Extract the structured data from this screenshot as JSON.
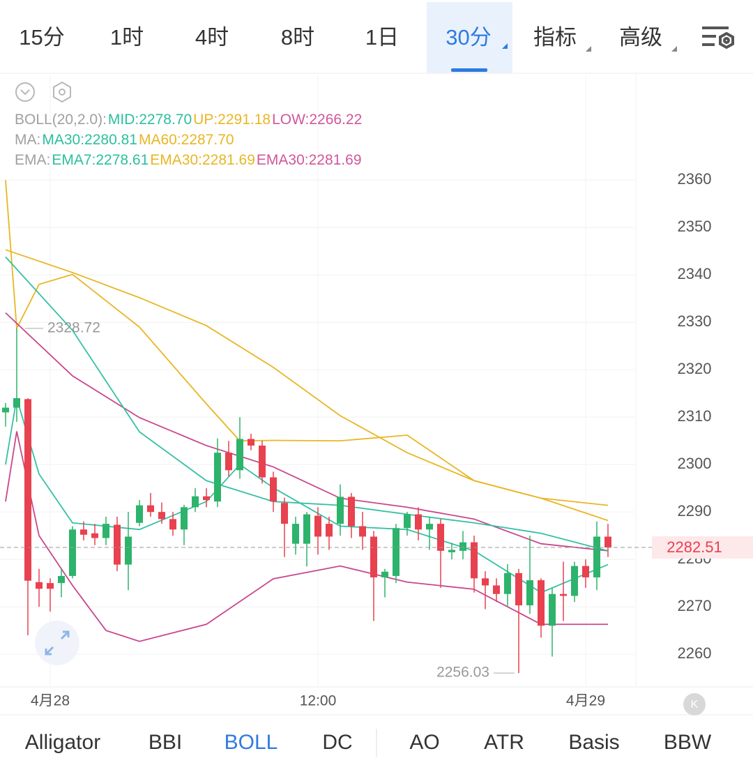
{
  "toolbar": {
    "timeframes": [
      "15分",
      "1时",
      "4时",
      "8时",
      "1日",
      "30分"
    ],
    "menus": [
      "指标",
      "高级"
    ]
  },
  "indicator_tabs": [
    "Alligator",
    "BBI",
    "BOLL",
    "DC",
    "AO",
    "ATR",
    "Basis",
    "BBW"
  ],
  "legend": [
    [
      "BOLL(20,2.0):",
      "MID:2278.70",
      "UP:2291.18",
      "LOW:2266.22"
    ],
    [
      "MA:",
      "MA30:2280.81",
      "MA60:2287.70"
    ],
    [
      "EMA:",
      "EMA7:2278.61",
      "EMA30:2281.69",
      "EMA30:2281.69"
    ]
  ],
  "chart_data": {
    "type": "candlestick",
    "categories": [
      null,
      null,
      null,
      null,
      "4月28",
      null,
      null,
      null,
      null,
      null,
      null,
      null,
      null,
      null,
      null,
      null,
      null,
      null,
      null,
      null,
      null,
      null,
      null,
      null,
      null,
      null,
      null,
      null,
      "12:00",
      null,
      null,
      null,
      null,
      null,
      null,
      null,
      null,
      null,
      null,
      null,
      null,
      null,
      null,
      null,
      null,
      null,
      null,
      null,
      null,
      null,
      null,
      null,
      "4月29",
      null,
      null
    ],
    "open": [
      2311,
      2312,
      2313.8,
      2275.2,
      2275,
      2275,
      2276.5,
      2286.3,
      2285.5,
      2284.5,
      2287.3,
      2278.9,
      2287.7,
      2291.4,
      2290,
      2288.5,
      2286.3,
      2291,
      2293.3,
      2292.2,
      2302.5,
      2298.8,
      2305.4,
      2304,
      2297.3,
      2291.9,
      2283.3,
      2283.3,
      2289.2,
      2287.5,
      2287.5,
      2293.2,
      2287,
      2284.8,
      2276.2,
      2276.5,
      2286.6,
      2289.5,
      2286.3,
      2287.5,
      2281.5,
      2281.8,
      2283.6,
      2276,
      2274.5,
      2272.7,
      2277.1,
      2270.3,
      2275.6,
      2266,
      2272.7,
      2272.3,
      2278.6,
      2276.2,
      2284.8
    ],
    "high": [
      2313,
      2328.72,
      2314,
      2278,
      2276,
      2278,
      2287,
      2288,
      2287.5,
      2289,
      2289,
      2290,
      2292.5,
      2294,
      2292,
      2290,
      2291.5,
      2295,
      2295,
      2305.5,
      2305,
      2310,
      2306.5,
      2305,
      2298.5,
      2293,
      2289,
      2290,
      2291,
      2289,
      2295.8,
      2294,
      2290,
      2286,
      2278,
      2287.5,
      2290,
      2291,
      2289,
      2288.5,
      2283.5,
      2286,
      2285,
      2277.5,
      2276,
      2279,
      2278,
      2285,
      2276,
      2274,
      2279.5,
      2279.5,
      2280,
      2288,
      2287.5
    ],
    "low": [
      2308,
      2309,
      2264,
      2270,
      2269,
      2272,
      2276,
      2284,
      2283,
      2283,
      2277.5,
      2273.5,
      2287,
      2289,
      2287.5,
      2285,
      2283,
      2290,
      2291,
      2291,
      2297.5,
      2297,
      2303,
      2296,
      2290,
      2280.5,
      2281,
      2278.5,
      2281,
      2282,
      2285,
      2284.5,
      2282,
      2267,
      2272,
      2275,
      2285,
      2284,
      2282,
      2274,
      2280,
      2280,
      2273,
      2269.5,
      2271,
      2270,
      2256.03,
      2268.5,
      2263.5,
      2259.5,
      2267,
      2271,
      2274,
      2273.5,
      2280.5
    ],
    "close": [
      2312,
      2314,
      2275.5,
      2273.8,
      2273.8,
      2276.5,
      2286.3,
      2285.2,
      2284.5,
      2287.5,
      2278.9,
      2284.8,
      2291.4,
      2290,
      2288.5,
      2286.3,
      2291,
      2293.3,
      2292.5,
      2302.5,
      2298.8,
      2305.4,
      2304,
      2297.3,
      2292.2,
      2287.5,
      2287.5,
      2289.5,
      2284.8,
      2284.8,
      2293.2,
      2287,
      2284.8,
      2276.2,
      2277.4,
      2286.6,
      2289.5,
      2286.3,
      2287.5,
      2281.8,
      2282,
      2283.6,
      2276,
      2274.5,
      2272.7,
      2277.1,
      2270.3,
      2275.6,
      2266,
      2272.7,
      2272.3,
      2278.6,
      2276.2,
      2284.8,
      2282.51
    ],
    "up_color": "#2db36b",
    "down_color": "#e8414f",
    "overlays": [
      {
        "color": "#e8b625",
        "x": [
          0,
          6,
          12,
          18,
          24,
          30,
          36,
          42,
          48,
          54
        ],
        "values": [
          2345.3,
          2340.5,
          2335.2,
          2329.3,
          2320.5,
          2310.3,
          2302.5,
          2296.6,
          2292.9,
          2288.2
        ]
      },
      {
        "color": "#e8b625",
        "x": [
          0,
          1,
          3,
          6,
          12,
          18,
          21,
          24,
          30,
          36,
          42,
          48,
          54
        ],
        "values": [
          2360,
          2328.72,
          2338,
          2340.1,
          2329,
          2312.8,
          2305,
          2305.1,
          2305,
          2306.2,
          2296.6,
          2292.9,
          2291.4
        ]
      },
      {
        "color": "#c9468d",
        "x": [
          0,
          6,
          12,
          18,
          24,
          30,
          36,
          42,
          48,
          54
        ],
        "values": [
          2332,
          2318.7,
          2309.9,
          2304,
          2299.5,
          2292.9,
          2291,
          2288.5,
          2283.3,
          2281.8
        ]
      },
      {
        "color": "#35c0a4",
        "x": [
          0,
          6,
          12,
          18,
          24,
          30,
          36,
          42,
          48,
          54
        ],
        "values": [
          2343.8,
          2328.3,
          2306.9,
          2296.6,
          2292.2,
          2291.4,
          2289.5,
          2287.7,
          2285.5,
          2281.8
        ]
      },
      {
        "color": "#c9468d",
        "x": [
          0,
          1,
          3,
          6,
          9,
          12,
          18,
          24,
          30,
          36,
          42,
          48,
          54
        ],
        "values": [
          2292.2,
          2307,
          2285,
          2274.5,
          2265,
          2262.7,
          2266.3,
          2275.9,
          2278.6,
          2275.2,
          2273.7,
          2266.3,
          2266.3
        ]
      },
      {
        "color": "#35c0a4",
        "x": [
          0,
          1,
          3,
          6,
          12,
          18,
          21,
          24,
          30,
          36,
          42,
          48,
          54
        ],
        "values": [
          2300,
          2314,
          2298,
          2287.7,
          2286.3,
          2292.2,
          2300,
          2295.1,
          2287,
          2286.3,
          2281.8,
          2273,
          2278.9
        ]
      }
    ],
    "ylim": [
      2253.1,
      2382.1
    ],
    "yticks": [
      2260,
      2270,
      2280,
      2290,
      2300,
      2310,
      2320,
      2330,
      2340,
      2350,
      2360
    ],
    "grid": true
  }
}
